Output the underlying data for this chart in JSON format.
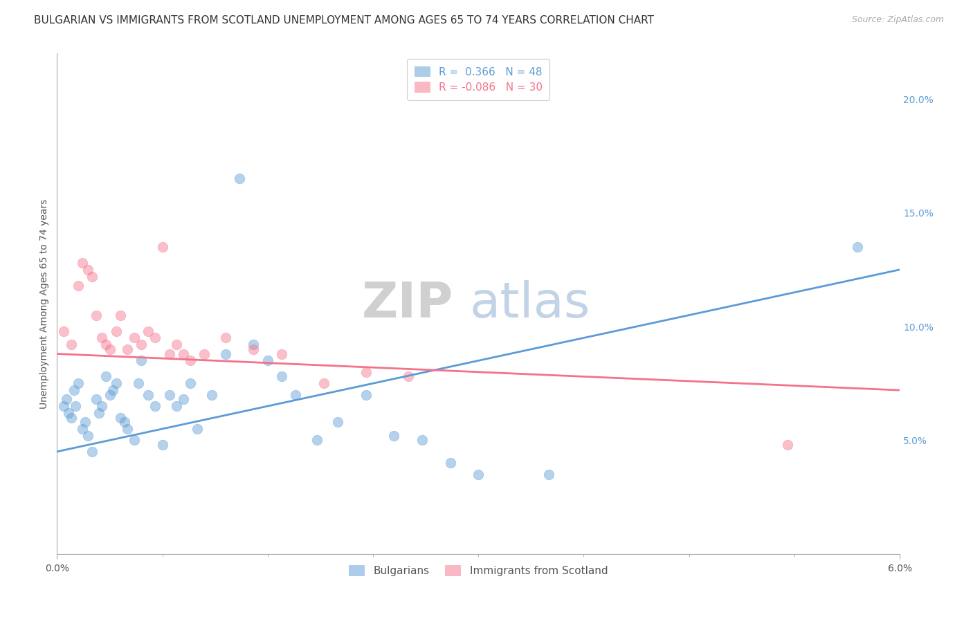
{
  "title": "BULGARIAN VS IMMIGRANTS FROM SCOTLAND UNEMPLOYMENT AMONG AGES 65 TO 74 YEARS CORRELATION CHART",
  "source": "Source: ZipAtlas.com",
  "ylabel": "Unemployment Among Ages 65 to 74 years",
  "ylabel_right_ticks": [
    "5.0%",
    "10.0%",
    "15.0%",
    "20.0%"
  ],
  "ylabel_right_vals": [
    5.0,
    10.0,
    15.0,
    20.0
  ],
  "xlim": [
    0.0,
    6.0
  ],
  "ylim": [
    0.0,
    22.0
  ],
  "watermark_zip": "ZIP",
  "watermark_atlas": "atlas",
  "bulgarian_x": [
    0.05,
    0.07,
    0.08,
    0.1,
    0.12,
    0.13,
    0.15,
    0.18,
    0.2,
    0.22,
    0.25,
    0.28,
    0.3,
    0.32,
    0.35,
    0.38,
    0.4,
    0.42,
    0.45,
    0.48,
    0.5,
    0.55,
    0.58,
    0.6,
    0.65,
    0.7,
    0.75,
    0.8,
    0.85,
    0.9,
    0.95,
    1.0,
    1.1,
    1.2,
    1.3,
    1.4,
    1.5,
    1.6,
    1.7,
    1.85,
    2.0,
    2.2,
    2.4,
    2.6,
    2.8,
    3.0,
    5.7,
    3.5
  ],
  "bulgarian_y": [
    6.5,
    6.8,
    6.2,
    6.0,
    7.2,
    6.5,
    7.5,
    5.5,
    5.8,
    5.2,
    4.5,
    6.8,
    6.2,
    6.5,
    7.8,
    7.0,
    7.2,
    7.5,
    6.0,
    5.8,
    5.5,
    5.0,
    7.5,
    8.5,
    7.0,
    6.5,
    4.8,
    7.0,
    6.5,
    6.8,
    7.5,
    5.5,
    7.0,
    8.8,
    16.5,
    9.2,
    8.5,
    7.8,
    7.0,
    5.0,
    5.8,
    7.0,
    5.2,
    5.0,
    4.0,
    3.5,
    13.5,
    3.5
  ],
  "scottish_x": [
    0.05,
    0.1,
    0.15,
    0.18,
    0.22,
    0.25,
    0.28,
    0.32,
    0.35,
    0.38,
    0.42,
    0.45,
    0.5,
    0.55,
    0.6,
    0.65,
    0.7,
    0.75,
    0.8,
    0.85,
    0.9,
    0.95,
    1.05,
    1.2,
    1.4,
    1.6,
    1.9,
    2.2,
    2.5,
    5.2
  ],
  "scottish_y": [
    9.8,
    9.2,
    11.8,
    12.8,
    12.5,
    12.2,
    10.5,
    9.5,
    9.2,
    9.0,
    9.8,
    10.5,
    9.0,
    9.5,
    9.2,
    9.8,
    9.5,
    13.5,
    8.8,
    9.2,
    8.8,
    8.5,
    8.8,
    9.5,
    9.0,
    8.8,
    7.5,
    8.0,
    7.8,
    4.8
  ],
  "blue_line_x": [
    0.0,
    6.0
  ],
  "blue_line_y": [
    4.5,
    12.5
  ],
  "pink_line_x": [
    0.0,
    6.0
  ],
  "pink_line_y": [
    8.8,
    7.2
  ],
  "blue_color": "#5b9bd5",
  "pink_color": "#f4728a",
  "bg_color": "#ffffff",
  "grid_color": "#cccccc",
  "title_fontsize": 11,
  "source_fontsize": 9,
  "axis_label_fontsize": 10,
  "tick_fontsize": 10,
  "scatter_size": 110,
  "scatter_alpha": 0.45
}
